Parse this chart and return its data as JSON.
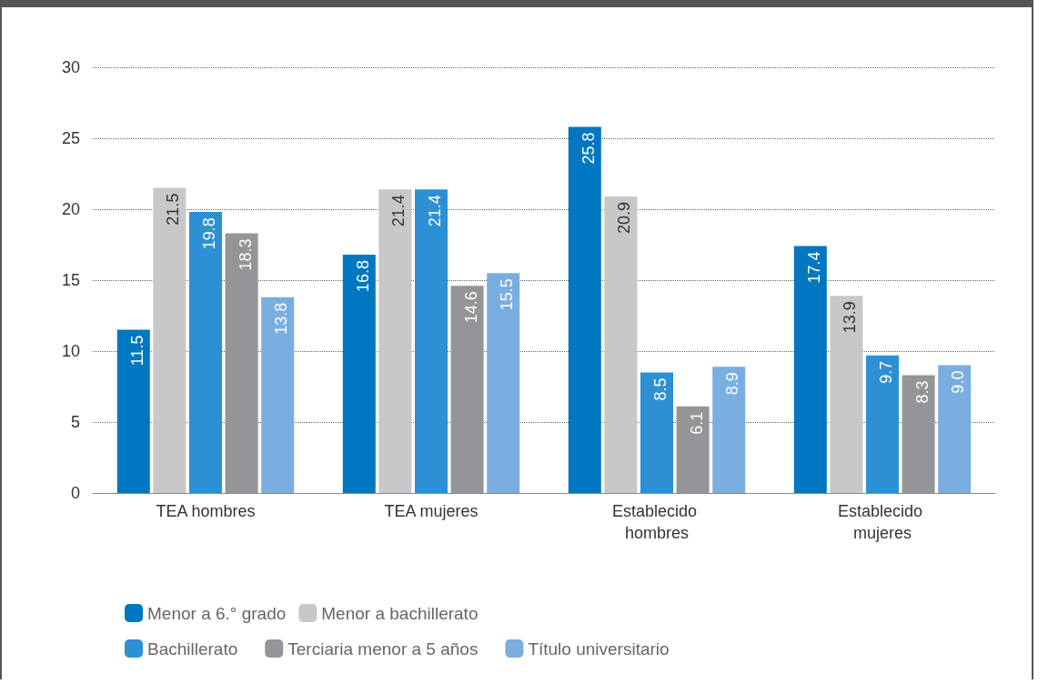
{
  "chart_data": {
    "type": "bar",
    "categories": [
      "TEA hombres",
      "TEA mujeres",
      "Establecido hombres",
      "Establecido mujeres"
    ],
    "series": [
      {
        "name": "Menor a 6.° grado",
        "color": "#0077c0",
        "values": [
          11.5,
          16.8,
          25.8,
          17.4
        ],
        "value_labels": [
          "11.5",
          "16.8",
          "25.8",
          "17.4"
        ]
      },
      {
        "name": "Menor a bachillerato",
        "color": "#c8c8ca",
        "values": [
          21.5,
          21.4,
          20.9,
          13.9
        ],
        "value_labels": [
          "21.5",
          "21.4",
          "20.9",
          "13.9"
        ]
      },
      {
        "name": "Bachillerato",
        "color": "#2e90d4",
        "values": [
          19.8,
          21.4,
          8.5,
          9.7
        ],
        "value_labels": [
          "19.8",
          "21.4",
          "8.5",
          "9.7"
        ]
      },
      {
        "name": "Terciaria menor a 5 años",
        "color": "#939598",
        "values": [
          18.3,
          14.6,
          6.1,
          8.3
        ],
        "value_labels": [
          "18.3",
          "14.6",
          "6.1",
          "8.3"
        ]
      },
      {
        "name": "Título universitario",
        "color": "#7aaee0",
        "values": [
          13.8,
          15.5,
          8.9,
          9.0
        ],
        "value_labels": [
          "13.8",
          "15.5",
          "8.9",
          "9.0"
        ]
      }
    ],
    "ylim": [
      0,
      30
    ],
    "yticks": [
      0,
      5,
      10,
      15,
      20,
      25,
      30
    ],
    "grid": "y",
    "legend": "bottom left"
  }
}
